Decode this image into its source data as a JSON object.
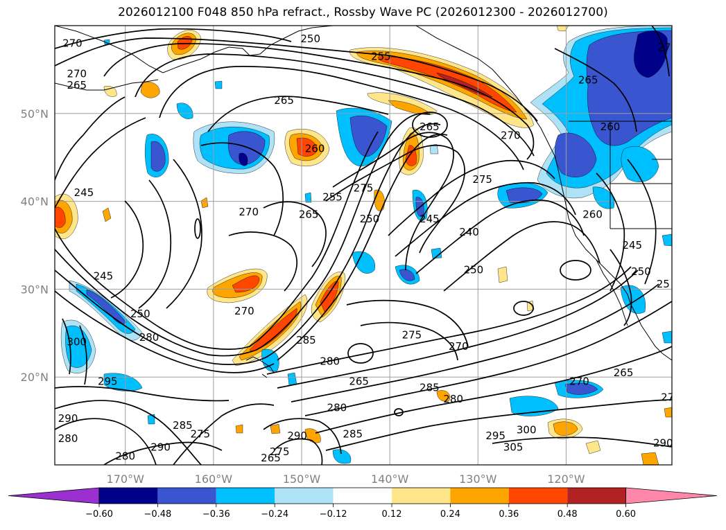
{
  "title": "2026012100 F048 850 hPa refract., Rossby Wave PC (2026012300 - 2026012700)",
  "map": {
    "lon_range": [
      -178,
      -108
    ],
    "lat_range": [
      10,
      60
    ],
    "latitude_labels": [
      "50°N",
      "40°N",
      "30°N",
      "20°N"
    ],
    "latitude_values": [
      50,
      40,
      30,
      20
    ],
    "longitude_labels": [
      "170°W",
      "160°W",
      "150°W",
      "140°W",
      "130°W",
      "120°W"
    ],
    "longitude_values": [
      -170,
      -160,
      -150,
      -140,
      -130,
      -120
    ],
    "grid": true,
    "coastlines": true
  },
  "contour_labels": [
    {
      "text": "270",
      "lon": -176,
      "lat": 58
    },
    {
      "text": "250",
      "lon": -149,
      "lat": 58.5
    },
    {
      "text": "255",
      "lon": -141,
      "lat": 56.5
    },
    {
      "text": "270",
      "lon": -175.5,
      "lat": 54.5
    },
    {
      "text": "265",
      "lon": -175.5,
      "lat": 53.2
    },
    {
      "text": "265",
      "lon": -152,
      "lat": 51.5
    },
    {
      "text": "265",
      "lon": -135.5,
      "lat": 48.5
    },
    {
      "text": "265",
      "lon": -117.5,
      "lat": 53.8
    },
    {
      "text": "260",
      "lon": -115,
      "lat": 48.5
    },
    {
      "text": "270",
      "lon": -108.5,
      "lat": 57.5
    },
    {
      "text": "270",
      "lon": -126.3,
      "lat": 47.5
    },
    {
      "text": "275",
      "lon": -129.5,
      "lat": 42.5
    },
    {
      "text": "260",
      "lon": -148.5,
      "lat": 46
    },
    {
      "text": "245",
      "lon": -174.7,
      "lat": 41
    },
    {
      "text": "255",
      "lon": -146.5,
      "lat": 40.5
    },
    {
      "text": "265",
      "lon": -149.2,
      "lat": 38.5
    },
    {
      "text": "270",
      "lon": -156,
      "lat": 38.8
    },
    {
      "text": "275",
      "lon": -143,
      "lat": 41.5
    },
    {
      "text": "250",
      "lon": -142.3,
      "lat": 38
    },
    {
      "text": "245",
      "lon": -135.5,
      "lat": 38
    },
    {
      "text": "240",
      "lon": -131,
      "lat": 36.5
    },
    {
      "text": "260",
      "lon": -117,
      "lat": 38.5
    },
    {
      "text": "245",
      "lon": -112.5,
      "lat": 35
    },
    {
      "text": "245",
      "lon": -172.5,
      "lat": 31.5
    },
    {
      "text": "250",
      "lon": -130.5,
      "lat": 32.2
    },
    {
      "text": "250",
      "lon": -111.5,
      "lat": 32
    },
    {
      "text": "25",
      "lon": -109,
      "lat": 30.6
    },
    {
      "text": "270",
      "lon": -156.5,
      "lat": 27.5
    },
    {
      "text": "250",
      "lon": -168.3,
      "lat": 27.2
    },
    {
      "text": "280",
      "lon": -167.3,
      "lat": 24.5
    },
    {
      "text": "300",
      "lon": -175.5,
      "lat": 24
    },
    {
      "text": "285",
      "lon": -149.5,
      "lat": 24.2
    },
    {
      "text": "280",
      "lon": -146.8,
      "lat": 21.8
    },
    {
      "text": "275",
      "lon": -137.5,
      "lat": 24.8
    },
    {
      "text": "270",
      "lon": -132.2,
      "lat": 23.5
    },
    {
      "text": "295",
      "lon": -172,
      "lat": 19.5
    },
    {
      "text": "265",
      "lon": -143.5,
      "lat": 19.5
    },
    {
      "text": "285",
      "lon": -135.5,
      "lat": 18.8
    },
    {
      "text": "280",
      "lon": -132.8,
      "lat": 17.5
    },
    {
      "text": "280",
      "lon": -146,
      "lat": 16.5
    },
    {
      "text": "270",
      "lon": -118.5,
      "lat": 19.5
    },
    {
      "text": "265",
      "lon": -113.5,
      "lat": 20.5
    },
    {
      "text": "27",
      "lon": -108.5,
      "lat": 17.7
    },
    {
      "text": "290",
      "lon": -176.5,
      "lat": 15.3
    },
    {
      "text": "285",
      "lon": -163.5,
      "lat": 14.5
    },
    {
      "text": "275",
      "lon": -161.5,
      "lat": 13.5
    },
    {
      "text": "280",
      "lon": -176.5,
      "lat": 13
    },
    {
      "text": "290",
      "lon": -166,
      "lat": 12
    },
    {
      "text": "280",
      "lon": -170,
      "lat": 11
    },
    {
      "text": "290",
      "lon": -150.5,
      "lat": 13.3
    },
    {
      "text": "285",
      "lon": -144.2,
      "lat": 13.5
    },
    {
      "text": "275",
      "lon": -152.5,
      "lat": 11.5
    },
    {
      "text": "265",
      "lon": -153.5,
      "lat": 10.8
    },
    {
      "text": "295",
      "lon": -128,
      "lat": 13.3
    },
    {
      "text": "300",
      "lon": -124.5,
      "lat": 14
    },
    {
      "text": "305",
      "lon": -126,
      "lat": 12
    },
    {
      "text": "290",
      "lon": -109,
      "lat": 12.5
    }
  ],
  "colorbar": {
    "labels": [
      "-0.60",
      "-0.48",
      "-0.36",
      "-0.24",
      "-0.12",
      "0.12",
      "0.24",
      "0.36",
      "0.48",
      "0.60"
    ],
    "colors": [
      "#9b30d0",
      "#00008b",
      "#3955cf",
      "#00bfff",
      "#aee2f7",
      "#ffffff",
      "#ffe68a",
      "#ffa500",
      "#ff4500",
      "#b22222",
      "#ff88aa"
    ],
    "extend": "both"
  }
}
